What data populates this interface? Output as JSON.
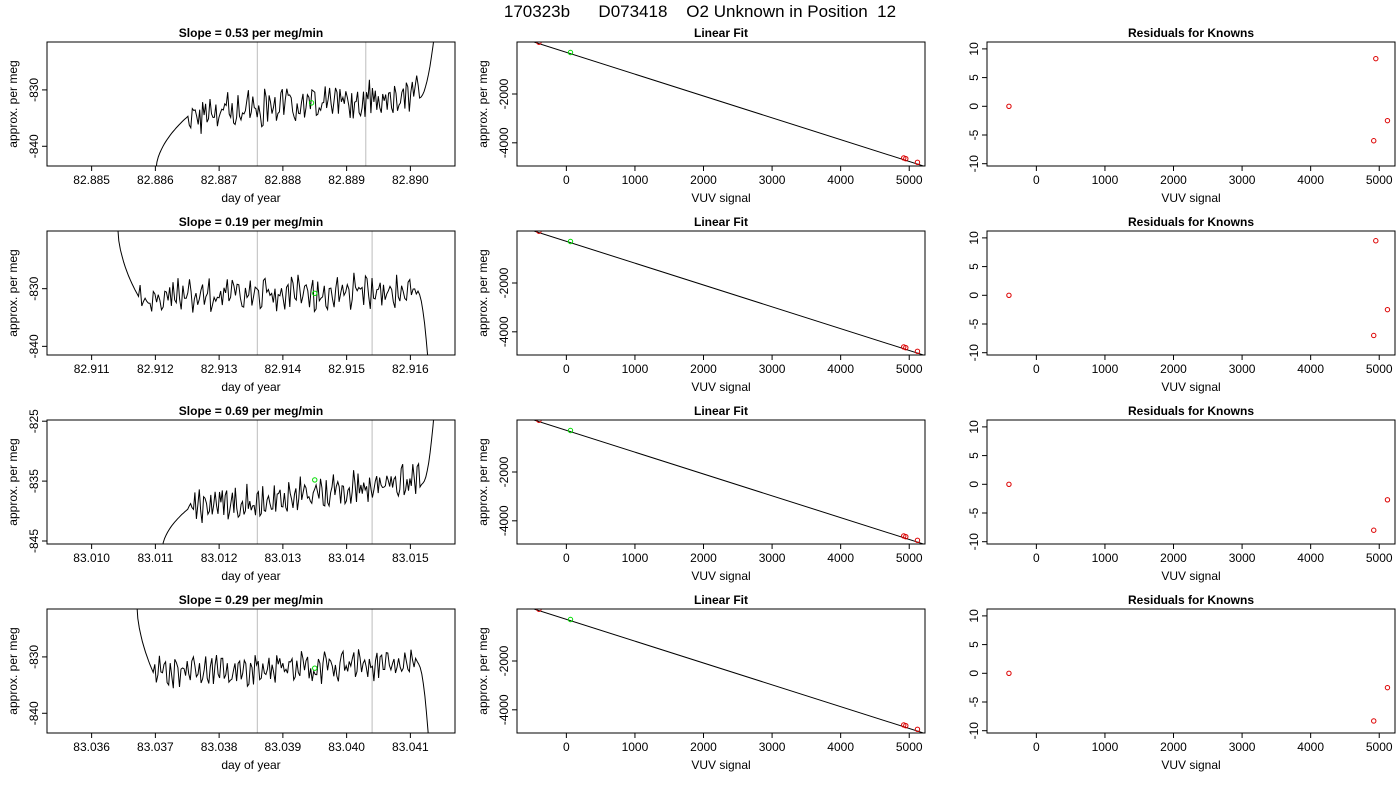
{
  "page": {
    "title": "170323b      D073418    O2 Unknown in Position  12"
  },
  "chart_data": [
    {
      "type": "line",
      "panel": "timeseries",
      "row": 0,
      "title": "Slope =  0.53  per meg/min",
      "xlabel": "day of year",
      "ylabel": "approx. per meg",
      "xlim": [
        82.8843,
        82.8907
      ],
      "ylim": [
        -843.5,
        -821.5
      ],
      "xticks": [
        82.885,
        82.886,
        82.887,
        82.888,
        82.889,
        82.89
      ],
      "xtick_labels": [
        "82.885",
        "82.886",
        "82.887",
        "82.888",
        "82.889",
        "82.890"
      ],
      "yticks": [
        -840,
        -830
      ],
      "ytick_labels": [
        "-840",
        "-830"
      ],
      "vlines": [
        82.8876,
        82.8893
      ],
      "series": [
        {
          "color": "#000000",
          "start": 82.886,
          "end": 82.8904,
          "y0": -845,
          "y1": -818,
          "base": -834.5,
          "amp": 2.2,
          "trend": 0.53,
          "ramp_start": 0.12,
          "ramp_end": 0.94
        }
      ],
      "highlight": {
        "x": 82.88845,
        "y": -832.3,
        "color": "#00dd00"
      }
    },
    {
      "type": "scatter",
      "panel": "linear-fit",
      "row": 0,
      "title": "Linear Fit",
      "xlabel": "VUV signal",
      "ylabel": "approx. per meg",
      "xlim": [
        -720,
        5230
      ],
      "ylim": [
        -4950,
        130
      ],
      "xticks": [
        0,
        1000,
        2000,
        3000,
        4000,
        5000
      ],
      "xtick_labels": [
        "0",
        "1000",
        "2000",
        "3000",
        "4000",
        "5000"
      ],
      "yticks": [
        -4000,
        -2000
      ],
      "ytick_labels": [
        "-4000",
        "-2000"
      ],
      "line": {
        "x": [
          -720,
          5230
        ],
        "y": [
          350,
          -4970
        ]
      },
      "points": [
        {
          "x": -400,
          "y": 120,
          "color": "#dd0000"
        },
        {
          "x": 4920,
          "y": -4620,
          "color": "#dd0000"
        },
        {
          "x": 4950,
          "y": -4650,
          "color": "#dd0000"
        },
        {
          "x": 5120,
          "y": -4800,
          "color": "#dd0000"
        },
        {
          "x": 60,
          "y": -300,
          "color": "#00dd00"
        }
      ]
    },
    {
      "type": "scatter",
      "panel": "residuals",
      "row": 0,
      "title": "Residuals for Knowns",
      "xlabel": "VUV signal",
      "ylabel": "",
      "xlim": [
        -720,
        5230
      ],
      "ylim": [
        -10.4,
        11.2
      ],
      "xticks": [
        0,
        1000,
        2000,
        3000,
        4000,
        5000
      ],
      "xtick_labels": [
        "0",
        "1000",
        "2000",
        "3000",
        "4000",
        "5000"
      ],
      "yticks": [
        -10,
        -5,
        0,
        5,
        10
      ],
      "ytick_labels": [
        "-10",
        "-5",
        "0",
        "5",
        "10"
      ],
      "points": [
        {
          "x": -400,
          "y": 0.0,
          "color": "#dd0000"
        },
        {
          "x": 4950,
          "y": 8.3,
          "color": "#dd0000"
        },
        {
          "x": 4920,
          "y": -6.0,
          "color": "#dd0000"
        },
        {
          "x": 5120,
          "y": -2.5,
          "color": "#dd0000"
        }
      ]
    },
    {
      "type": "line",
      "panel": "timeseries",
      "row": 1,
      "title": "Slope =  0.19  per meg/min",
      "xlabel": "day of year",
      "ylabel": "approx. per meg",
      "xlim": [
        82.9103,
        82.9167
      ],
      "ylim": [
        -841.5,
        -820.0
      ],
      "xticks": [
        82.911,
        82.912,
        82.913,
        82.914,
        82.915,
        82.916
      ],
      "xtick_labels": [
        "82.911",
        "82.912",
        "82.913",
        "82.914",
        "82.915",
        "82.916"
      ],
      "yticks": [
        -840,
        -830
      ],
      "ytick_labels": [
        "-840",
        "-830"
      ],
      "vlines": [
        82.9136,
        82.9154
      ],
      "series": [
        {
          "color": "#000000",
          "start": 82.9114,
          "end": 82.9163,
          "y0": -818,
          "y1": -846,
          "base": -831.5,
          "amp": 2.0,
          "trend": 0.19,
          "ramp_start": 0.07,
          "ramp_end": 0.96
        }
      ],
      "highlight": {
        "x": 82.9145,
        "y": -830.8,
        "color": "#00dd00"
      }
    },
    {
      "type": "scatter",
      "panel": "linear-fit",
      "row": 1,
      "title": "Linear Fit",
      "xlabel": "VUV signal",
      "ylabel": "approx. per meg",
      "xlim": [
        -720,
        5230
      ],
      "ylim": [
        -4950,
        130
      ],
      "xticks": [
        0,
        1000,
        2000,
        3000,
        4000,
        5000
      ],
      "xtick_labels": [
        "0",
        "1000",
        "2000",
        "3000",
        "4000",
        "5000"
      ],
      "yticks": [
        -4000,
        -2000
      ],
      "ytick_labels": [
        "-4000",
        "-2000"
      ],
      "line": {
        "x": [
          -720,
          5230
        ],
        "y": [
          350,
          -4970
        ]
      },
      "points": [
        {
          "x": -400,
          "y": 120,
          "color": "#dd0000"
        },
        {
          "x": 4920,
          "y": -4620,
          "color": "#dd0000"
        },
        {
          "x": 4950,
          "y": -4650,
          "color": "#dd0000"
        },
        {
          "x": 5120,
          "y": -4800,
          "color": "#dd0000"
        },
        {
          "x": 60,
          "y": -300,
          "color": "#00dd00"
        }
      ]
    },
    {
      "type": "scatter",
      "panel": "residuals",
      "row": 1,
      "title": "Residuals for Knowns",
      "xlabel": "VUV signal",
      "ylabel": "",
      "xlim": [
        -720,
        5230
      ],
      "ylim": [
        -10.4,
        11.2
      ],
      "xticks": [
        0,
        1000,
        2000,
        3000,
        4000,
        5000
      ],
      "xtick_labels": [
        "0",
        "1000",
        "2000",
        "3000",
        "4000",
        "5000"
      ],
      "yticks": [
        -10,
        -5,
        0,
        5,
        10
      ],
      "ytick_labels": [
        "-10",
        "-5",
        "0",
        "5",
        "10"
      ],
      "points": [
        {
          "x": -400,
          "y": 0.0,
          "color": "#dd0000"
        },
        {
          "x": 4950,
          "y": 9.5,
          "color": "#dd0000"
        },
        {
          "x": 4920,
          "y": -7.0,
          "color": "#dd0000"
        },
        {
          "x": 5120,
          "y": -2.5,
          "color": "#dd0000"
        }
      ]
    },
    {
      "type": "line",
      "panel": "timeseries",
      "row": 2,
      "title": "Slope =  0.69  per meg/min",
      "xlabel": "day of year",
      "ylabel": "approx. per meg",
      "xlim": [
        83.0093,
        83.0157
      ],
      "ylim": [
        -845.5,
        -824.8
      ],
      "xticks": [
        83.01,
        83.011,
        83.012,
        83.013,
        83.014,
        83.015
      ],
      "xtick_labels": [
        "83.010",
        "83.011",
        "83.012",
        "83.013",
        "83.014",
        "83.015"
      ],
      "yticks": [
        -845,
        -835,
        -825
      ],
      "ytick_labels": [
        "-845",
        "-835",
        "-825"
      ],
      "vlines": [
        83.0126,
        83.0144
      ],
      "series": [
        {
          "color": "#000000",
          "start": 83.0111,
          "end": 83.0154,
          "y0": -847,
          "y1": -820,
          "base": -839.5,
          "amp": 2.0,
          "trend": 0.69,
          "ramp_start": 0.1,
          "ramp_end": 0.95
        }
      ],
      "highlight": {
        "x": 83.0135,
        "y": -834.8,
        "color": "#00dd00"
      }
    },
    {
      "type": "scatter",
      "panel": "linear-fit",
      "row": 2,
      "title": "Linear Fit",
      "xlabel": "VUV signal",
      "ylabel": "approx. per meg",
      "xlim": [
        -720,
        5230
      ],
      "ylim": [
        -4950,
        130
      ],
      "xticks": [
        0,
        1000,
        2000,
        3000,
        4000,
        5000
      ],
      "xtick_labels": [
        "0",
        "1000",
        "2000",
        "3000",
        "4000",
        "5000"
      ],
      "yticks": [
        -4000,
        -2000
      ],
      "ytick_labels": [
        "-4000",
        "-2000"
      ],
      "line": {
        "x": [
          -720,
          5230
        ],
        "y": [
          350,
          -4970
        ]
      },
      "points": [
        {
          "x": -400,
          "y": 120,
          "color": "#dd0000"
        },
        {
          "x": 4920,
          "y": -4620,
          "color": "#dd0000"
        },
        {
          "x": 4950,
          "y": -4650,
          "color": "#dd0000"
        },
        {
          "x": 5120,
          "y": -4800,
          "color": "#dd0000"
        },
        {
          "x": 60,
          "y": -300,
          "color": "#00dd00"
        }
      ]
    },
    {
      "type": "scatter",
      "panel": "residuals",
      "row": 2,
      "title": "Residuals for Knowns",
      "xlabel": "VUV signal",
      "ylabel": "",
      "xlim": [
        -720,
        5230
      ],
      "ylim": [
        -10.4,
        11.2
      ],
      "xticks": [
        0,
        1000,
        2000,
        3000,
        4000,
        5000
      ],
      "xtick_labels": [
        "0",
        "1000",
        "2000",
        "3000",
        "4000",
        "5000"
      ],
      "yticks": [
        -10,
        -5,
        0,
        5,
        10
      ],
      "ytick_labels": [
        "-10",
        "-5",
        "0",
        "5",
        "10"
      ],
      "points": [
        {
          "x": -400,
          "y": 0.0,
          "color": "#dd0000"
        },
        {
          "x": 4920,
          "y": -8.0,
          "color": "#dd0000"
        },
        {
          "x": 5120,
          "y": -2.7,
          "color": "#dd0000"
        }
      ]
    },
    {
      "type": "line",
      "panel": "timeseries",
      "row": 3,
      "title": "Slope =  0.29  per meg/min",
      "xlabel": "day of year",
      "ylabel": "approx. per meg",
      "xlim": [
        83.0353,
        83.0417
      ],
      "ylim": [
        -843.5,
        -821.5
      ],
      "xticks": [
        83.036,
        83.037,
        83.038,
        83.039,
        83.04,
        83.041
      ],
      "xtick_labels": [
        "83.036",
        "83.037",
        "83.038",
        "83.039",
        "83.040",
        "83.041"
      ],
      "yticks": [
        -840,
        -830
      ],
      "ytick_labels": [
        "-840",
        "-830"
      ],
      "vlines": [
        83.0386,
        83.0404
      ],
      "series": [
        {
          "color": "#000000",
          "start": 83.0367,
          "end": 83.0413,
          "y0": -819,
          "y1": -847,
          "base": -833.0,
          "amp": 2.0,
          "trend": 0.29,
          "ramp_start": 0.06,
          "ramp_end": 0.96
        }
      ],
      "highlight": {
        "x": 83.0395,
        "y": -832.0,
        "color": "#00dd00"
      }
    },
    {
      "type": "scatter",
      "panel": "linear-fit",
      "row": 3,
      "title": "Linear Fit",
      "xlabel": "VUV signal",
      "ylabel": "approx. per meg",
      "xlim": [
        -720,
        5230
      ],
      "ylim": [
        -4950,
        130
      ],
      "xticks": [
        0,
        1000,
        2000,
        3000,
        4000,
        5000
      ],
      "xtick_labels": [
        "0",
        "1000",
        "2000",
        "3000",
        "4000",
        "5000"
      ],
      "yticks": [
        -4000,
        -2000
      ],
      "ytick_labels": [
        "-4000",
        "-2000"
      ],
      "line": {
        "x": [
          -720,
          5230
        ],
        "y": [
          350,
          -4970
        ]
      },
      "points": [
        {
          "x": -400,
          "y": 120,
          "color": "#dd0000"
        },
        {
          "x": 4920,
          "y": -4620,
          "color": "#dd0000"
        },
        {
          "x": 4950,
          "y": -4650,
          "color": "#dd0000"
        },
        {
          "x": 5120,
          "y": -4800,
          "color": "#dd0000"
        },
        {
          "x": 60,
          "y": -300,
          "color": "#00dd00"
        }
      ]
    },
    {
      "type": "scatter",
      "panel": "residuals",
      "row": 3,
      "title": "Residuals for Knowns",
      "xlabel": "VUV signal",
      "ylabel": "",
      "xlim": [
        -720,
        5230
      ],
      "ylim": [
        -10.4,
        11.2
      ],
      "xticks": [
        0,
        1000,
        2000,
        3000,
        4000,
        5000
      ],
      "xtick_labels": [
        "0",
        "1000",
        "2000",
        "3000",
        "4000",
        "5000"
      ],
      "yticks": [
        -10,
        -5,
        0,
        5,
        10
      ],
      "ytick_labels": [
        "-10",
        "-5",
        "0",
        "5",
        "10"
      ],
      "points": [
        {
          "x": -400,
          "y": 0.0,
          "color": "#dd0000"
        },
        {
          "x": 4920,
          "y": -8.3,
          "color": "#dd0000"
        },
        {
          "x": 5120,
          "y": -2.5,
          "color": "#dd0000"
        }
      ]
    }
  ]
}
